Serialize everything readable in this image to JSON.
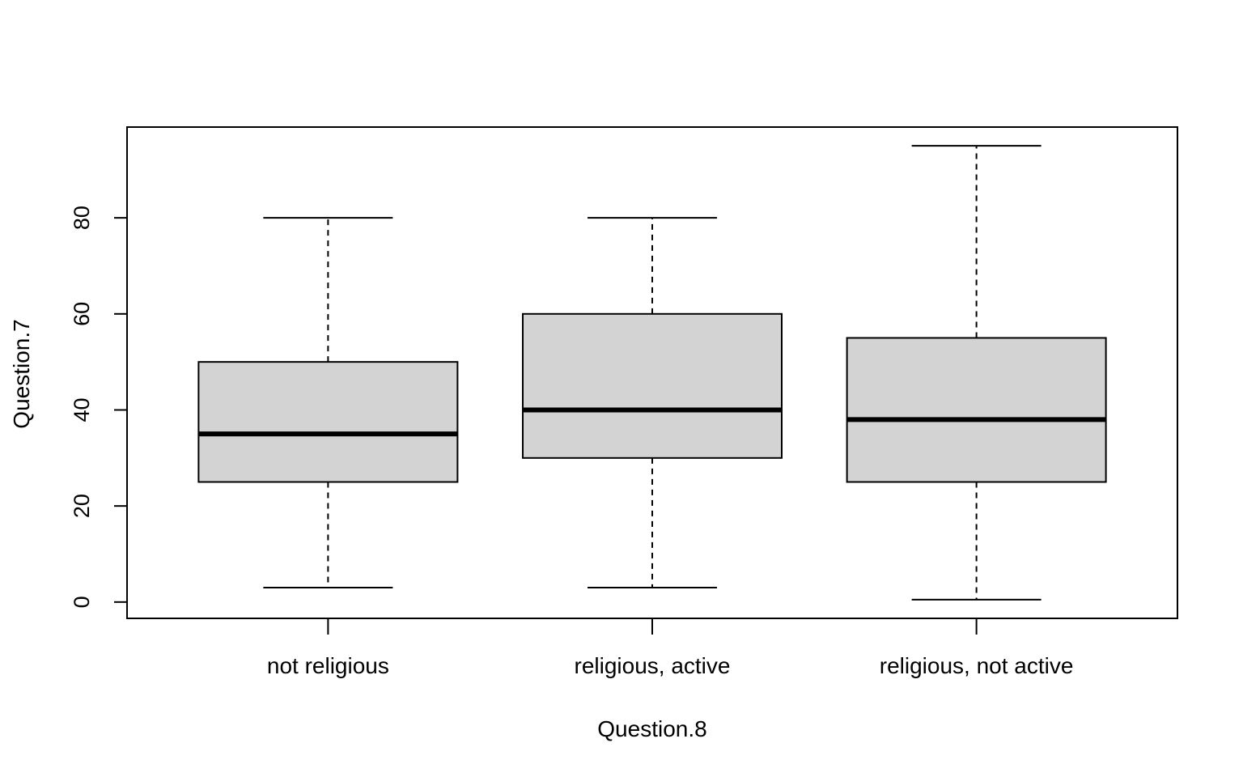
{
  "chart_data": {
    "type": "boxplot",
    "title": "",
    "xlabel": "Question.8",
    "ylabel": "Question.7",
    "ylim": [
      -3.4,
      98.9
    ],
    "yticks": [
      0,
      20,
      40,
      60,
      80
    ],
    "categories": [
      "not religious",
      "religious, active",
      "religious, not active"
    ],
    "boxes": [
      {
        "whisker_low": 3,
        "q1": 25,
        "median": 35,
        "q3": 50,
        "whisker_high": 80
      },
      {
        "whisker_low": 3,
        "q1": 30,
        "median": 40,
        "q3": 60,
        "whisker_high": 80
      },
      {
        "whisker_low": 0.5,
        "q1": 25,
        "median": 38,
        "q3": 55,
        "whisker_high": 95
      }
    ],
    "box_fill": "#d3d3d3",
    "grid": false,
    "legend": "none"
  }
}
